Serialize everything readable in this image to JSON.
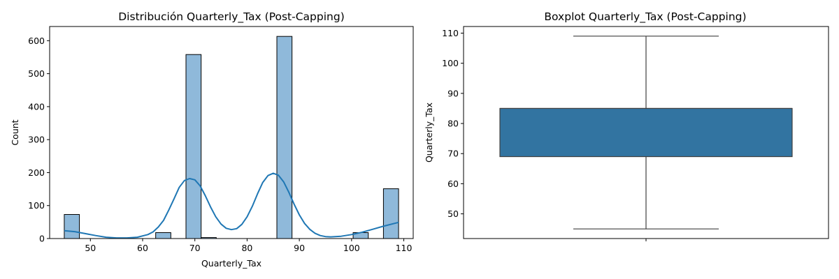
{
  "chart_data": [
    {
      "type": "histogram",
      "title": "Distribución Quarterly_Tax (Post-Capping)",
      "xlabel": "Quarterly_Tax",
      "ylabel": "Count",
      "xlim": [
        42.2,
        111.8
      ],
      "ylim": [
        0,
        643
      ],
      "xticks": [
        50,
        60,
        70,
        80,
        90,
        100,
        110
      ],
      "yticks": [
        0,
        100,
        200,
        300,
        400,
        500,
        600
      ],
      "bins": [
        {
          "x0": 45.0,
          "x1": 47.9,
          "count": 73
        },
        {
          "x0": 47.9,
          "x1": 50.8,
          "count": 0
        },
        {
          "x0": 50.8,
          "x1": 53.7,
          "count": 0
        },
        {
          "x0": 53.7,
          "x1": 56.6,
          "count": 0
        },
        {
          "x0": 56.6,
          "x1": 59.5,
          "count": 0
        },
        {
          "x0": 59.5,
          "x1": 62.5,
          "count": 0
        },
        {
          "x0": 62.5,
          "x1": 65.4,
          "count": 18
        },
        {
          "x0": 65.4,
          "x1": 68.3,
          "count": 0
        },
        {
          "x0": 68.3,
          "x1": 71.2,
          "count": 558
        },
        {
          "x0": 71.2,
          "x1": 74.1,
          "count": 3
        },
        {
          "x0": 74.1,
          "x1": 77.0,
          "count": 0
        },
        {
          "x0": 77.0,
          "x1": 79.9,
          "count": 0
        },
        {
          "x0": 79.9,
          "x1": 82.8,
          "count": 0
        },
        {
          "x0": 82.8,
          "x1": 85.7,
          "count": 0
        },
        {
          "x0": 85.7,
          "x1": 88.6,
          "count": 613
        },
        {
          "x0": 88.6,
          "x1": 91.5,
          "count": 0
        },
        {
          "x0": 91.5,
          "x1": 94.5,
          "count": 0
        },
        {
          "x0": 94.5,
          "x1": 97.4,
          "count": 0
        },
        {
          "x0": 97.4,
          "x1": 100.3,
          "count": 0
        },
        {
          "x0": 100.3,
          "x1": 103.2,
          "count": 18
        },
        {
          "x0": 103.2,
          "x1": 106.1,
          "count": 0
        },
        {
          "x0": 106.1,
          "x1": 109.0,
          "count": 151
        }
      ],
      "kde": {
        "x": [
          45,
          47,
          49,
          51,
          53,
          55,
          57,
          59,
          61,
          62,
          63,
          64,
          65,
          66,
          67,
          68,
          69,
          70,
          71,
          72,
          73,
          74,
          75,
          76,
          77,
          78,
          79,
          80,
          81,
          82,
          83,
          84,
          85,
          86,
          87,
          88,
          89,
          90,
          91,
          92,
          93,
          94,
          95,
          96,
          98,
          100,
          102,
          104,
          106,
          108,
          109
        ],
        "y": [
          24,
          21,
          15,
          9,
          4,
          2,
          2,
          4,
          12,
          20,
          35,
          55,
          86,
          120,
          155,
          176,
          182,
          178,
          160,
          130,
          96,
          66,
          44,
          31,
          27,
          30,
          43,
          66,
          98,
          136,
          170,
          191,
          198,
          192,
          172,
          140,
          104,
          72,
          46,
          28,
          16,
          9,
          6,
          5,
          7,
          12,
          19,
          28,
          37,
          45,
          49
        ]
      },
      "colors": {
        "bar_fill": "#8fb9da",
        "bar_edge": "#000000",
        "kde_line": "#1f77b4"
      }
    },
    {
      "type": "box",
      "title": "Boxplot Quarterly_Tax (Post-Capping)",
      "xlabel": "",
      "ylabel": "Quarterly_Tax",
      "ylim": [
        41.8,
        112.2
      ],
      "yticks": [
        50,
        60,
        70,
        80,
        90,
        100,
        110
      ],
      "box": {
        "whisker_low": 45,
        "q1": 69,
        "median": 85,
        "q3": 85,
        "whisker_high": 109
      },
      "colors": {
        "box_fill": "#3274a1",
        "box_edge": "#3f3f3f"
      }
    }
  ]
}
